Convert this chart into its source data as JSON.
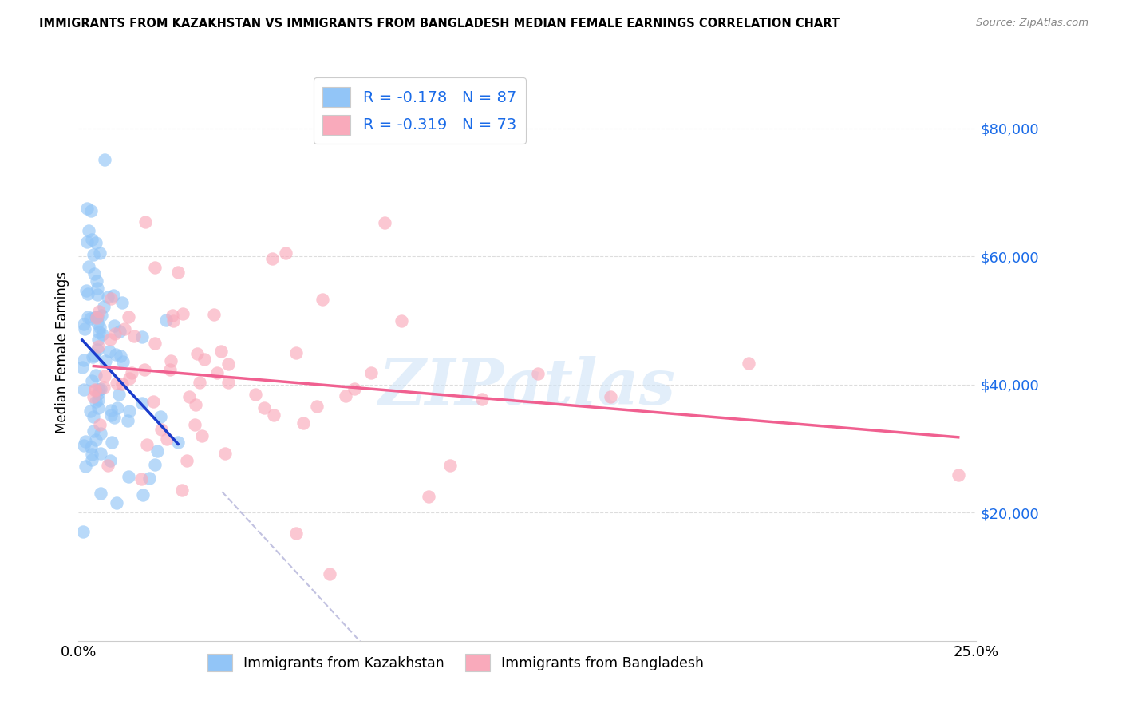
{
  "title": "IMMIGRANTS FROM KAZAKHSTAN VS IMMIGRANTS FROM BANGLADESH MEDIAN FEMALE EARNINGS CORRELATION CHART",
  "source": "Source: ZipAtlas.com",
  "ylabel": "Median Female Earnings",
  "xlim": [
    0.0,
    0.25
  ],
  "ylim": [
    0,
    90000
  ],
  "yticks": [
    20000,
    40000,
    60000,
    80000
  ],
  "ytick_labels": [
    "$20,000",
    "$40,000",
    "$60,000",
    "$80,000"
  ],
  "xtick_labels": [
    "0.0%",
    "25.0%"
  ],
  "legend_R1": "R = -0.178",
  "legend_N1": "N = 87",
  "legend_R2": "R = -0.319",
  "legend_N2": "N = 73",
  "color_kaz": "#92C5F7",
  "color_ban": "#F9AABB",
  "line_color_kaz": "#1a3ccc",
  "line_color_ban": "#F06090",
  "dash_color": "#BBBBDD",
  "watermark": "ZIPatlas",
  "legend_label1": "Immigrants from Kazakhstan",
  "legend_label2": "Immigrants from Bangladesh",
  "R1": -0.178,
  "R2": -0.319,
  "N1": 87,
  "N2": 73
}
